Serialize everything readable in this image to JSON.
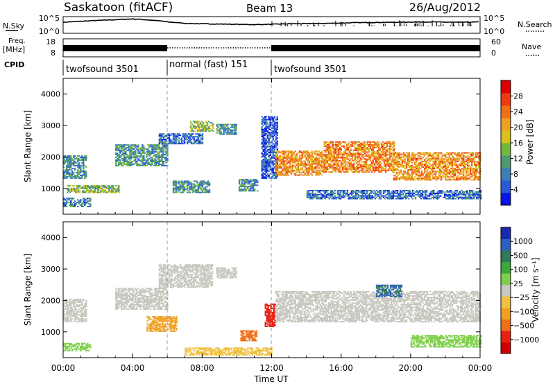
{
  "header": {
    "site": "Saskatoon (fitACF)",
    "beam": "Beam 13",
    "date": "26/Aug/2012"
  },
  "left_labels": {
    "nsky": "N.Sky",
    "freq": "Freq.",
    "freq_unit": "[MHz]",
    "cpid": "CPID"
  },
  "right_labels": {
    "nsearch": "N.Search",
    "nave": "Nave"
  },
  "cpid_segments": [
    {
      "label": "twofsound 3501",
      "start_h": 0,
      "end_h": 6
    },
    {
      "label": "normal (fast) 151",
      "start_h": 6,
      "end_h": 12
    },
    {
      "label": "twofsound 3501",
      "start_h": 12,
      "end_h": 24
    }
  ],
  "x_axis": {
    "title": "Time UT",
    "range_h": [
      0,
      24
    ],
    "ticks": [
      "00:00",
      "04:00",
      "08:00",
      "12:00",
      "16:00",
      "20:00",
      "00:00"
    ]
  },
  "power_colorbar": {
    "label": "Power [dB]",
    "ticks": [
      "4",
      "8",
      "12",
      "16",
      "20",
      "24",
      "28"
    ],
    "colors": [
      "#0a14e6",
      "#2a5bd6",
      "#3a7fb8",
      "#4e9a72",
      "#74b83a",
      "#d8c21a",
      "#f0a020",
      "#f07018",
      "#f03a10",
      "#e00000"
    ]
  },
  "velocity_colorbar": {
    "label": "Velocity [m s⁻¹]",
    "ticks": [
      "1000",
      "500",
      "100",
      "25",
      "−25",
      "−100",
      "−500",
      "−1000"
    ],
    "colors": [
      "#1a2ab0",
      "#2e5fc0",
      "#2e7a5a",
      "#3aa83a",
      "#7ed04a",
      "#c8c8c0",
      "#f0c040",
      "#f0a020",
      "#f07018",
      "#e82010",
      "#d00000"
    ]
  },
  "chart_data": [
    {
      "type": "line",
      "panel": "N.Sky / N.Search",
      "yscale": "log",
      "ylim": [
        1,
        100000
      ],
      "y_ticks": [
        "10^5",
        "10^0"
      ],
      "x_h": [
        0,
        1,
        2,
        3,
        4,
        5,
        6,
        7,
        8,
        9,
        10,
        11,
        12,
        13,
        14,
        15,
        16,
        17,
        18,
        19,
        20,
        21,
        22,
        23,
        24
      ],
      "series": [
        {
          "name": "N.Sky",
          "values": [
            2000,
            4000,
            7000,
            12000,
            20000,
            9000,
            2500,
            900,
            700,
            600,
            500,
            400,
            500,
            700,
            800,
            900,
            1200,
            1600,
            1800,
            2000,
            2400,
            2600,
            2200,
            2000,
            2500
          ]
        }
      ]
    },
    {
      "type": "line",
      "panel": "Freq. / Nave",
      "y_left": {
        "label": "Freq. [MHz]",
        "ticks": [
          "18",
          "8"
        ]
      },
      "y_right": {
        "label": "Nave",
        "ticks": [
          "60",
          "0"
        ]
      }
    },
    {
      "type": "heatmap",
      "panel": "Power",
      "ylabel": "Slant Range [km]",
      "ylim": [
        180,
        4500
      ],
      "y_ticks": [
        1000,
        2000,
        3000,
        4000
      ],
      "xlim_h": [
        0,
        24
      ],
      "value_label": "Power [dB]",
      "value_range": [
        2,
        30
      ],
      "regions": [
        {
          "t0": 0,
          "t1": 1.3,
          "r0": 1300,
          "r1": 2050,
          "v": 10
        },
        {
          "t0": 0.2,
          "t1": 3.2,
          "r0": 850,
          "r1": 1100,
          "v": 14
        },
        {
          "t0": 0,
          "t1": 1.6,
          "r0": 400,
          "r1": 700,
          "v": 9
        },
        {
          "t0": 3,
          "t1": 6,
          "r0": 1700,
          "r1": 2400,
          "v": 11
        },
        {
          "t0": 5.5,
          "t1": 8,
          "r0": 2400,
          "r1": 2750,
          "v": 8
        },
        {
          "t0": 7.3,
          "t1": 8.6,
          "r0": 2800,
          "r1": 3150,
          "v": 15
        },
        {
          "t0": 8.8,
          "t1": 10,
          "r0": 2700,
          "r1": 3050,
          "v": 10
        },
        {
          "t0": 6.3,
          "t1": 8.4,
          "r0": 850,
          "r1": 1250,
          "v": 11
        },
        {
          "t0": 10.1,
          "t1": 11.2,
          "r0": 900,
          "r1": 1300,
          "v": 10
        },
        {
          "t0": 11.4,
          "t1": 12.3,
          "r0": 1300,
          "r1": 3300,
          "v": 6
        },
        {
          "t0": 12.2,
          "t1": 15,
          "r0": 1400,
          "r1": 2200,
          "v": 21
        },
        {
          "t0": 15,
          "t1": 19,
          "r0": 1500,
          "r1": 2500,
          "v": 22
        },
        {
          "t0": 19,
          "t1": 24,
          "r0": 1250,
          "r1": 2150,
          "v": 21
        },
        {
          "t0": 14,
          "t1": 24,
          "r0": 650,
          "r1": 950,
          "v": 8
        }
      ]
    },
    {
      "type": "heatmap",
      "panel": "Velocity",
      "ylabel": "Slant Range [km]",
      "ylim": [
        180,
        4500
      ],
      "y_ticks": [
        1000,
        2000,
        3000,
        4000
      ],
      "xlim_h": [
        0,
        24
      ],
      "value_label": "Velocity [m s⁻¹]",
      "value_range": [
        -1000,
        1000
      ],
      "regions": [
        {
          "t0": 0,
          "t1": 1.3,
          "r0": 1300,
          "r1": 2050,
          "v": 0
        },
        {
          "t0": 0,
          "t1": 1.6,
          "r0": 380,
          "r1": 650,
          "v": 60
        },
        {
          "t0": 3,
          "t1": 6,
          "r0": 1700,
          "r1": 2400,
          "v": 0
        },
        {
          "t0": 5.5,
          "t1": 8.6,
          "r0": 2400,
          "r1": 3150,
          "v": 0
        },
        {
          "t0": 8.8,
          "t1": 10,
          "r0": 2700,
          "r1": 3050,
          "v": 0
        },
        {
          "t0": 4.8,
          "t1": 6.5,
          "r0": 1000,
          "r1": 1500,
          "v": -110
        },
        {
          "t0": 10.2,
          "t1": 11.1,
          "r0": 700,
          "r1": 1050,
          "v": -150
        },
        {
          "t0": 11.6,
          "t1": 12.2,
          "r0": 1150,
          "r1": 1900,
          "v": -700
        },
        {
          "t0": 12.2,
          "t1": 24,
          "r0": 1300,
          "r1": 2300,
          "v": 0
        },
        {
          "t0": 18,
          "t1": 19.5,
          "r0": 2100,
          "r1": 2500,
          "v": 300
        },
        {
          "t0": 20,
          "t1": 24,
          "r0": 500,
          "r1": 900,
          "v": 60
        },
        {
          "t0": 7,
          "t1": 12,
          "r0": 250,
          "r1": 500,
          "v": -50
        }
      ]
    }
  ]
}
